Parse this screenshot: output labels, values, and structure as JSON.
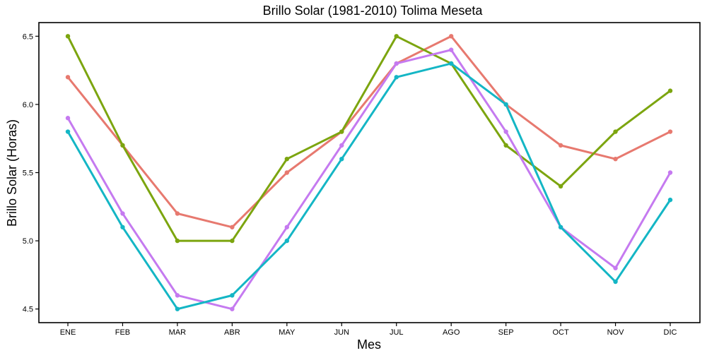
{
  "chart_data": {
    "type": "line",
    "title": "Brillo Solar (1981-2010)  Tolima Meseta",
    "xlabel": "Mes",
    "ylabel": "Brillo Solar (Horas)",
    "categories": [
      "ENE",
      "FEB",
      "MAR",
      "ABR",
      "MAY",
      "JUN",
      "JUL",
      "AGO",
      "SEP",
      "OCT",
      "NOV",
      "DIC"
    ],
    "yticks": [
      "4.5",
      "5.0",
      "5.5",
      "6.0",
      "6.5"
    ],
    "ylim": [
      4.4,
      6.6
    ],
    "grid": false,
    "legend": "none",
    "series": [
      {
        "color": "#E7796F",
        "values": [
          6.2,
          5.7,
          5.2,
          5.1,
          5.5,
          5.8,
          6.3,
          6.5,
          6.0,
          5.7,
          5.6,
          5.8
        ]
      },
      {
        "color": "#7CA50F",
        "values": [
          6.5,
          5.7,
          5.0,
          5.0,
          5.6,
          5.8,
          6.5,
          6.3,
          5.7,
          5.4,
          5.8,
          6.1
        ]
      },
      {
        "color": "#C57AF0",
        "values": [
          5.9,
          5.2,
          4.6,
          4.5,
          5.1,
          5.7,
          6.3,
          6.4,
          5.8,
          5.1,
          4.8,
          5.5
        ]
      },
      {
        "color": "#14B6C5",
        "values": [
          5.8,
          5.1,
          4.5,
          4.6,
          5.0,
          5.6,
          6.2,
          6.3,
          6.0,
          5.1,
          4.7,
          5.3
        ]
      }
    ]
  }
}
